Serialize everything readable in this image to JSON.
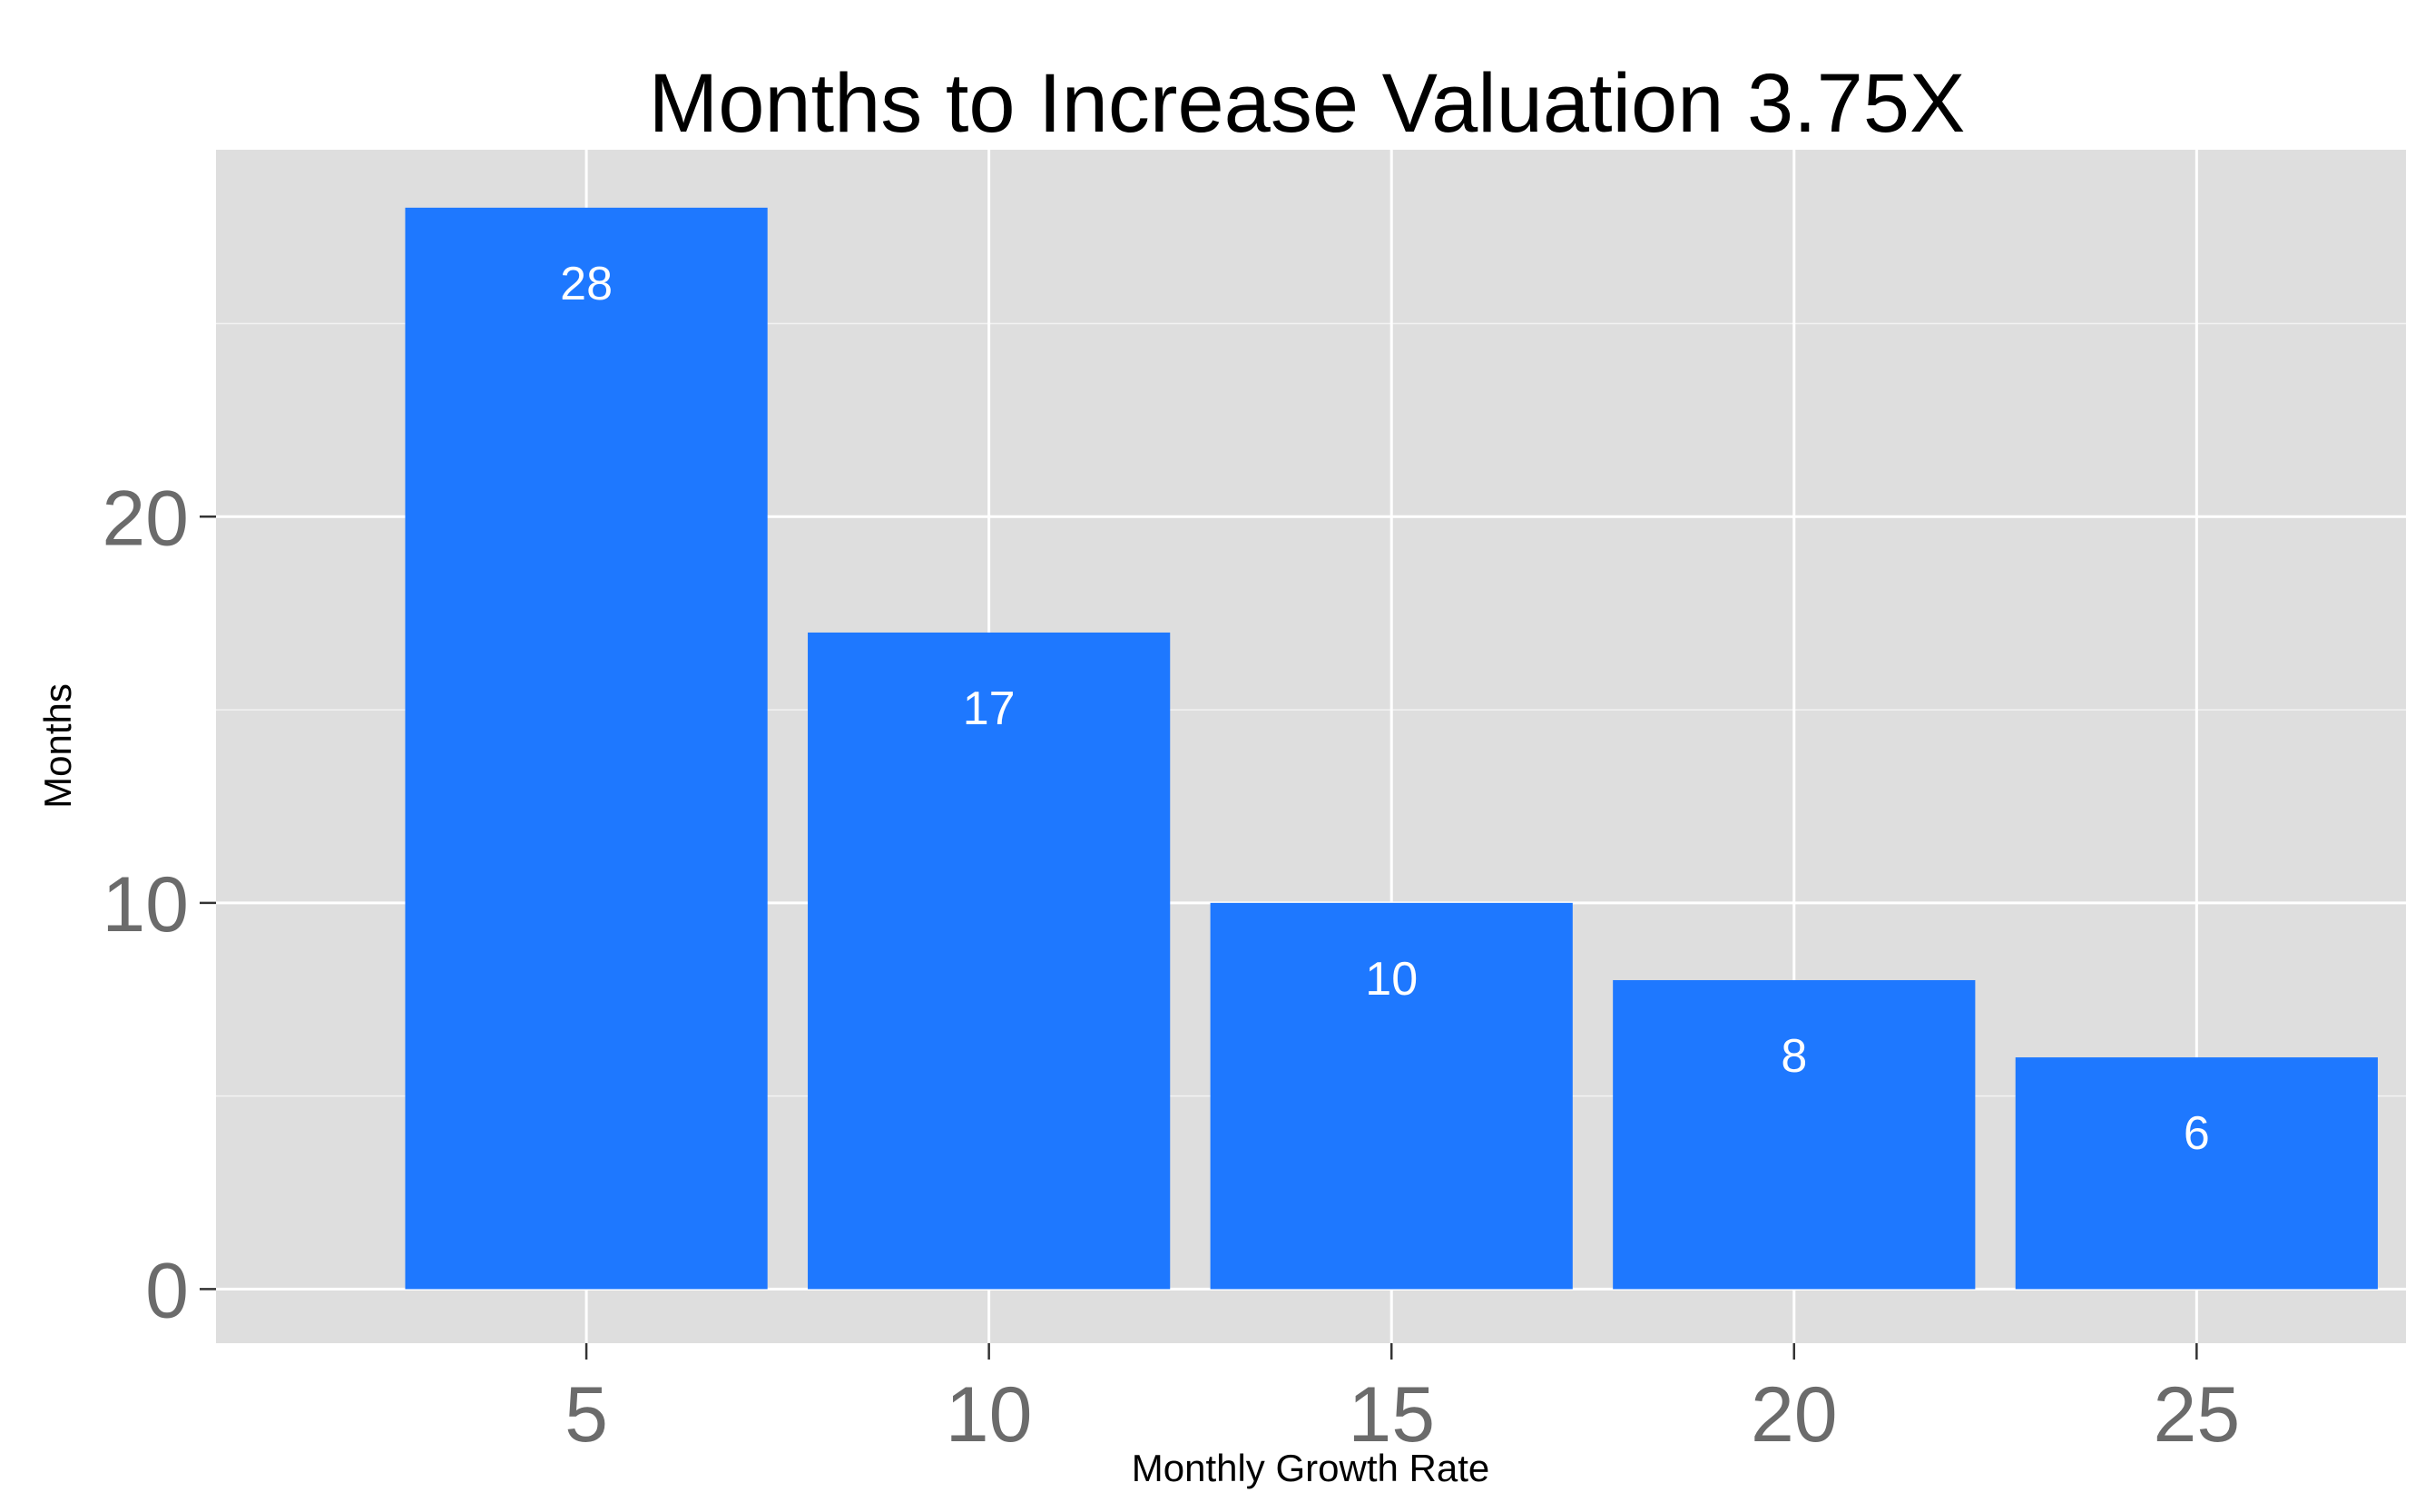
{
  "chart_data": {
    "type": "bar",
    "title": "Months to Increase Valuation 3.75X",
    "xlabel": "Monthly Growth Rate",
    "ylabel": "Months",
    "x": [
      5,
      10,
      15,
      20,
      25
    ],
    "values": [
      28,
      17,
      10,
      8,
      6
    ],
    "data_labels": [
      "28",
      "17",
      "10",
      "8",
      "6"
    ],
    "xlim": [
      0.4,
      27.6
    ],
    "ylim": [
      -1.4,
      29.5
    ],
    "x_ticks": [
      5,
      10,
      15,
      20,
      25
    ],
    "y_ticks": [
      0,
      10,
      20
    ],
    "y_minor_ticks": [
      5,
      15,
      25
    ],
    "bar_width": 4.5,
    "grid": true,
    "legend": false,
    "colors": {
      "bar": "#1e78ff",
      "panel_background": "#dedede",
      "gridline": "#ffffff",
      "tick_label": "#6b6b6b",
      "data_label": "#ffffff"
    }
  }
}
